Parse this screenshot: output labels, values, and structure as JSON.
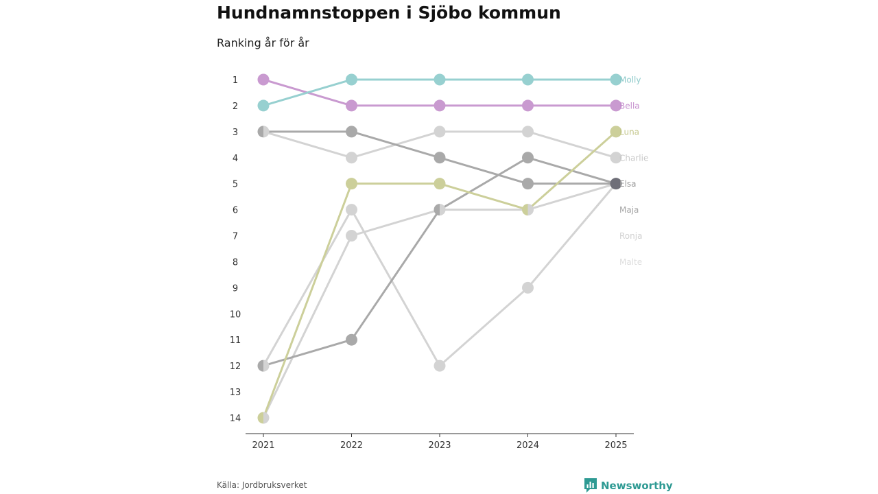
{
  "title": "Hundnamnstoppen i Sjöbo kommun",
  "subtitle": "Ranking år för år",
  "source": "Källa: Jordbruksverket",
  "brand": {
    "name": "Newsworthy",
    "icon": "newsworthy-logo-icon",
    "color": "#2e9a93"
  },
  "chart_data": {
    "type": "line",
    "title": "Hundnamnstoppen i Sjöbo kommun",
    "subtitle": "Ranking år för år",
    "xlabel": "",
    "ylabel": "",
    "x": [
      "2021",
      "2022",
      "2023",
      "2024",
      "2025"
    ],
    "y_ticks": [
      1,
      2,
      3,
      4,
      5,
      6,
      7,
      8,
      9,
      10,
      11,
      12,
      13,
      14
    ],
    "ylim": [
      1,
      14
    ],
    "y_inverted": true,
    "grid": false,
    "series": [
      {
        "name": "Malte",
        "values": [
          12,
          6,
          12,
          9,
          5
        ],
        "color": "#d3d3d3",
        "label_color": "#dedede"
      },
      {
        "name": "Ronja",
        "values": [
          14,
          7,
          6,
          6,
          5
        ],
        "color": "#d3d3d3",
        "label_color": "#d0d0d0"
      },
      {
        "name": "Charlie",
        "values": [
          3,
          4,
          3,
          3,
          4
        ],
        "color": "#d3d3d3",
        "label_color": "#c8c8c8"
      },
      {
        "name": "Maja",
        "values": [
          12,
          11,
          6,
          4,
          5
        ],
        "color": "#a9a9a9",
        "label_color": "#a6a6a6"
      },
      {
        "name": "Elsa",
        "values": [
          3,
          3,
          4,
          5,
          5
        ],
        "color": "#a9a9a9",
        "label_color": "#9a9a9a"
      },
      {
        "name": "Luna",
        "values": [
          14,
          5,
          5,
          6,
          3
        ],
        "color": "#cccf9a",
        "label_color": "#c3c68a"
      },
      {
        "name": "Bella",
        "values": [
          1,
          2,
          2,
          2,
          2
        ],
        "color": "#c99ad0",
        "label_color": "#c48dcc"
      },
      {
        "name": "Molly",
        "values": [
          2,
          1,
          1,
          1,
          1
        ],
        "color": "#97d0d0",
        "label_color": "#8ecaca"
      }
    ],
    "overlap_dot_color": "#6e6e78"
  }
}
